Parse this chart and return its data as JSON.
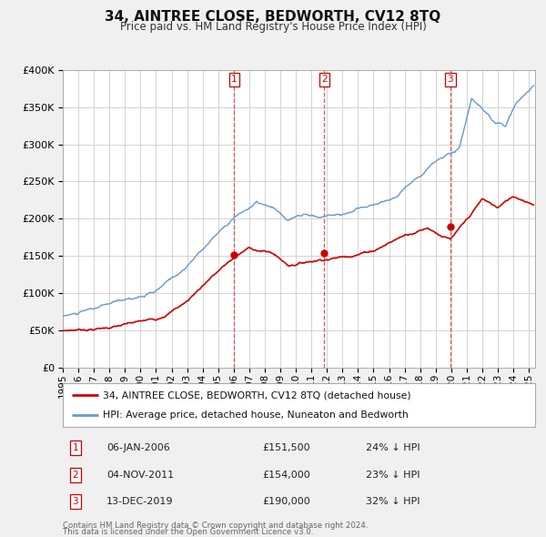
{
  "title": "34, AINTREE CLOSE, BEDWORTH, CV12 8TQ",
  "subtitle": "Price paid vs. HM Land Registry's House Price Index (HPI)",
  "legend_label_red": "34, AINTREE CLOSE, BEDWORTH, CV12 8TQ (detached house)",
  "legend_label_blue": "HPI: Average price, detached house, Nuneaton and Bedworth",
  "footer_line1": "Contains HM Land Registry data © Crown copyright and database right 2024.",
  "footer_line2": "This data is licensed under the Open Government Licence v3.0.",
  "transactions": [
    {
      "num": 1,
      "label_date": "06-JAN-2006",
      "price": 151500,
      "price_label": "£151,500",
      "pct": "24%",
      "direction": "↓",
      "year_x": 2006.02
    },
    {
      "num": 2,
      "label_date": "04-NOV-2011",
      "price": 154000,
      "price_label": "£154,000",
      "pct": "23%",
      "direction": "↓",
      "year_x": 2011.84
    },
    {
      "num": 3,
      "label_date": "13-DEC-2019",
      "price": 190000,
      "price_label": "£190,000",
      "pct": "32%",
      "direction": "↓",
      "year_x": 2019.95
    }
  ],
  "red_color": "#cc0000",
  "blue_color": "#6699cc",
  "vline_color": "#dd4444",
  "grid_color": "#cccccc",
  "bg_color": "#f0f0f0",
  "plot_bg_color": "#ffffff",
  "ylim": [
    0,
    400000
  ],
  "yticks": [
    0,
    50000,
    100000,
    150000,
    200000,
    250000,
    300000,
    350000,
    400000
  ],
  "xlim_start": 1995.0,
  "xlim_end": 2025.4,
  "xticks": [
    1995,
    1996,
    1997,
    1998,
    1999,
    2000,
    2001,
    2002,
    2003,
    2004,
    2005,
    2006,
    2007,
    2008,
    2009,
    2010,
    2011,
    2012,
    2013,
    2014,
    2015,
    2016,
    2017,
    2018,
    2019,
    2020,
    2021,
    2022,
    2023,
    2024,
    2025
  ]
}
